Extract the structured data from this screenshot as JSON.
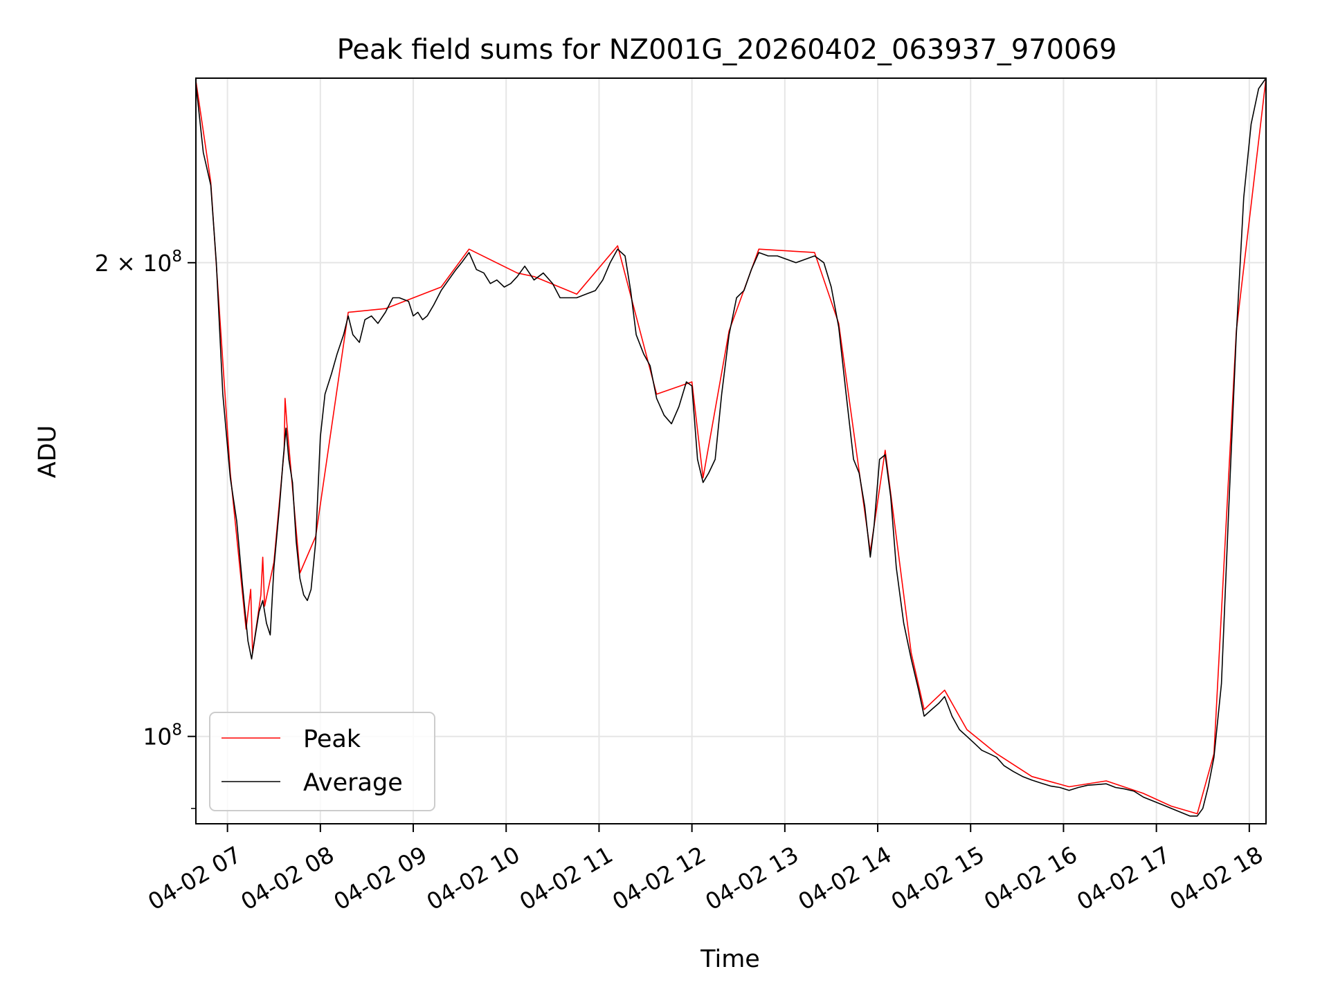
{
  "chart_data": {
    "type": "line",
    "title": "Peak field sums for NZ001G_20260402_063937_970069",
    "xlabel": "Time",
    "ylabel": "ADU",
    "yscale": "log",
    "ylim": [
      88000000,
      262000000
    ],
    "xlim": [
      6.66,
      18.18
    ],
    "x_unit": "hours on 04-02",
    "grid": true,
    "legend_position": "lower-left",
    "x_ticks": [
      {
        "value": 7,
        "label": "04-02 07"
      },
      {
        "value": 8,
        "label": "04-02 08"
      },
      {
        "value": 9,
        "label": "04-02 09"
      },
      {
        "value": 10,
        "label": "04-02 10"
      },
      {
        "value": 11,
        "label": "04-02 11"
      },
      {
        "value": 12,
        "label": "04-02 12"
      },
      {
        "value": 13,
        "label": "04-02 13"
      },
      {
        "value": 14,
        "label": "04-02 14"
      },
      {
        "value": 15,
        "label": "04-02 15"
      },
      {
        "value": 16,
        "label": "04-02 16"
      },
      {
        "value": 17,
        "label": "04-02 17"
      },
      {
        "value": 18,
        "label": "04-02 18"
      }
    ],
    "y_ticks": [
      {
        "value": 100000000,
        "base": "10",
        "exp": "8",
        "coef": ""
      },
      {
        "value": 200000000,
        "base": "10",
        "exp": "8",
        "coef": "2 × "
      }
    ],
    "series": [
      {
        "name": "Average",
        "color": "#000000",
        "points": [
          [
            6.66,
            260000000
          ],
          [
            6.74,
            235000000
          ],
          [
            6.82,
            224000000
          ],
          [
            6.88,
            200000000
          ],
          [
            6.95,
            165000000
          ],
          [
            7.03,
            146000000
          ],
          [
            7.1,
            137000000
          ],
          [
            7.16,
            125000000
          ],
          [
            7.22,
            115000000
          ],
          [
            7.26,
            112000000
          ],
          [
            7.3,
            116000000
          ],
          [
            7.34,
            120000000
          ],
          [
            7.38,
            122000000
          ],
          [
            7.42,
            118000000
          ],
          [
            7.46,
            116000000
          ],
          [
            7.5,
            128000000
          ],
          [
            7.56,
            140000000
          ],
          [
            7.6,
            150000000
          ],
          [
            7.63,
            157000000
          ],
          [
            7.66,
            150000000
          ],
          [
            7.7,
            145000000
          ],
          [
            7.74,
            133000000
          ],
          [
            7.78,
            126000000
          ],
          [
            7.82,
            123000000
          ],
          [
            7.86,
            122000000
          ],
          [
            7.9,
            124000000
          ],
          [
            7.95,
            133000000
          ],
          [
            8.0,
            155000000
          ],
          [
            8.05,
            165000000
          ],
          [
            8.12,
            170000000
          ],
          [
            8.18,
            175000000
          ],
          [
            8.25,
            180000000
          ],
          [
            8.3,
            185000000
          ],
          [
            8.35,
            180000000
          ],
          [
            8.42,
            178000000
          ],
          [
            8.48,
            184000000
          ],
          [
            8.55,
            185000000
          ],
          [
            8.62,
            183000000
          ],
          [
            8.7,
            186000000
          ],
          [
            8.78,
            190000000
          ],
          [
            8.85,
            190000000
          ],
          [
            8.95,
            189000000
          ],
          [
            9.0,
            185000000
          ],
          [
            9.05,
            186000000
          ],
          [
            9.1,
            184000000
          ],
          [
            9.15,
            185000000
          ],
          [
            9.22,
            188000000
          ],
          [
            9.3,
            192000000
          ],
          [
            9.38,
            195000000
          ],
          [
            9.46,
            198000000
          ],
          [
            9.52,
            200000000
          ],
          [
            9.6,
            203000000
          ],
          [
            9.68,
            198000000
          ],
          [
            9.76,
            197000000
          ],
          [
            9.83,
            194000000
          ],
          [
            9.9,
            195000000
          ],
          [
            9.98,
            193000000
          ],
          [
            10.05,
            194000000
          ],
          [
            10.12,
            196000000
          ],
          [
            10.2,
            199000000
          ],
          [
            10.3,
            195000000
          ],
          [
            10.4,
            197000000
          ],
          [
            10.5,
            194000000
          ],
          [
            10.58,
            190000000
          ],
          [
            10.66,
            190000000
          ],
          [
            10.76,
            190000000
          ],
          [
            10.86,
            191000000
          ],
          [
            10.96,
            192000000
          ],
          [
            11.04,
            195000000
          ],
          [
            11.12,
            200000000
          ],
          [
            11.2,
            204000000
          ],
          [
            11.28,
            202000000
          ],
          [
            11.34,
            192000000
          ],
          [
            11.4,
            180000000
          ],
          [
            11.48,
            175000000
          ],
          [
            11.55,
            172000000
          ],
          [
            11.62,
            164000000
          ],
          [
            11.7,
            160000000
          ],
          [
            11.78,
            158000000
          ],
          [
            11.86,
            162000000
          ],
          [
            11.94,
            168000000
          ],
          [
            12.0,
            167000000
          ],
          [
            12.06,
            150000000
          ],
          [
            12.12,
            145000000
          ],
          [
            12.18,
            147000000
          ],
          [
            12.25,
            150000000
          ],
          [
            12.32,
            165000000
          ],
          [
            12.4,
            180000000
          ],
          [
            12.48,
            190000000
          ],
          [
            12.56,
            192000000
          ],
          [
            12.64,
            198000000
          ],
          [
            12.72,
            203000000
          ],
          [
            12.82,
            202000000
          ],
          [
            12.92,
            202000000
          ],
          [
            13.02,
            201000000
          ],
          [
            13.12,
            200000000
          ],
          [
            13.22,
            201000000
          ],
          [
            13.32,
            202000000
          ],
          [
            13.42,
            200000000
          ],
          [
            13.5,
            193000000
          ],
          [
            13.58,
            182000000
          ],
          [
            13.66,
            165000000
          ],
          [
            13.74,
            150000000
          ],
          [
            13.8,
            147000000
          ],
          [
            13.86,
            140000000
          ],
          [
            13.92,
            130000000
          ],
          [
            13.96,
            136000000
          ],
          [
            14.02,
            150000000
          ],
          [
            14.08,
            151000000
          ],
          [
            14.14,
            142000000
          ],
          [
            14.2,
            128000000
          ],
          [
            14.28,
            118000000
          ],
          [
            14.36,
            112000000
          ],
          [
            14.44,
            107000000
          ],
          [
            14.5,
            103000000
          ],
          [
            14.58,
            104000000
          ],
          [
            14.66,
            105000000
          ],
          [
            14.72,
            106000000
          ],
          [
            14.8,
            103000000
          ],
          [
            14.88,
            101000000
          ],
          [
            14.96,
            100000000
          ],
          [
            15.04,
            99000000
          ],
          [
            15.12,
            98000000
          ],
          [
            15.2,
            97500000
          ],
          [
            15.28,
            97000000
          ],
          [
            15.36,
            95800000
          ],
          [
            15.46,
            95000000
          ],
          [
            15.56,
            94300000
          ],
          [
            15.66,
            93800000
          ],
          [
            15.76,
            93400000
          ],
          [
            15.86,
            93000000
          ],
          [
            15.96,
            92800000
          ],
          [
            16.06,
            92400000
          ],
          [
            16.16,
            92800000
          ],
          [
            16.26,
            93100000
          ],
          [
            16.36,
            93200000
          ],
          [
            16.46,
            93300000
          ],
          [
            16.56,
            92800000
          ],
          [
            16.66,
            92600000
          ],
          [
            16.76,
            92300000
          ],
          [
            16.86,
            91500000
          ],
          [
            16.96,
            91000000
          ],
          [
            17.06,
            90500000
          ],
          [
            17.16,
            90000000
          ],
          [
            17.26,
            89500000
          ],
          [
            17.36,
            89000000
          ],
          [
            17.44,
            89000000
          ],
          [
            17.5,
            90000000
          ],
          [
            17.56,
            93000000
          ],
          [
            17.62,
            97000000
          ],
          [
            17.7,
            108000000
          ],
          [
            17.78,
            140000000
          ],
          [
            17.86,
            180000000
          ],
          [
            17.94,
            220000000
          ],
          [
            18.02,
            245000000
          ],
          [
            18.1,
            258000000
          ],
          [
            18.18,
            262000000
          ]
        ]
      },
      {
        "name": "Peak",
        "color": "#ff0000",
        "points": [
          [
            6.66,
            261000000
          ],
          [
            6.82,
            225000000
          ],
          [
            7.03,
            147000000
          ],
          [
            7.2,
            117000000
          ],
          [
            7.25,
            124000000
          ],
          [
            7.27,
            113000000
          ],
          [
            7.36,
            123000000
          ],
          [
            7.38,
            130000000
          ],
          [
            7.4,
            121000000
          ],
          [
            7.5,
            129000000
          ],
          [
            7.61,
            152000000
          ],
          [
            7.62,
            164000000
          ],
          [
            7.64,
            158000000
          ],
          [
            7.78,
            127000000
          ],
          [
            7.95,
            134000000
          ],
          [
            8.3,
            186000000
          ],
          [
            8.7,
            187000000
          ],
          [
            9.3,
            193000000
          ],
          [
            9.6,
            204000000
          ],
          [
            10.12,
            197000000
          ],
          [
            10.3,
            196000000
          ],
          [
            10.76,
            191000000
          ],
          [
            11.2,
            205000000
          ],
          [
            11.62,
            165000000
          ],
          [
            12.0,
            168000000
          ],
          [
            12.12,
            146000000
          ],
          [
            12.4,
            181000000
          ],
          [
            12.72,
            204000000
          ],
          [
            13.32,
            203000000
          ],
          [
            13.58,
            183000000
          ],
          [
            13.92,
            131000000
          ],
          [
            14.08,
            152000000
          ],
          [
            14.36,
            113000000
          ],
          [
            14.5,
            104000000
          ],
          [
            14.72,
            107000000
          ],
          [
            14.96,
            101000000
          ],
          [
            15.28,
            97500000
          ],
          [
            15.66,
            94300000
          ],
          [
            16.06,
            92900000
          ],
          [
            16.46,
            93700000
          ],
          [
            16.86,
            92000000
          ],
          [
            17.16,
            90300000
          ],
          [
            17.44,
            89300000
          ],
          [
            17.62,
            97500000
          ],
          [
            17.86,
            181000000
          ],
          [
            18.18,
            262000000
          ]
        ]
      }
    ]
  }
}
